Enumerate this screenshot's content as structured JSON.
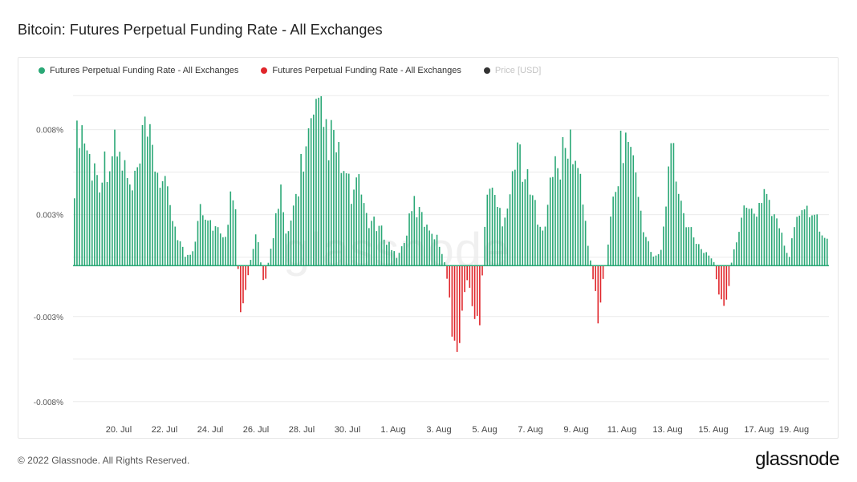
{
  "page": {
    "title": "Bitcoin: Futures Perpetual Funding Rate - All Exchanges",
    "copyright": "© 2022 Glassnode. All Rights Reserved.",
    "logo": "glassnode",
    "watermark": "glassnode"
  },
  "legend": [
    {
      "label": "Futures Perpetual Funding Rate - All Exchanges",
      "color": "#2aa876"
    },
    {
      "label": "Futures Perpetual Funding Rate - All Exchanges",
      "color": "#e0262b"
    },
    {
      "label": "Price [USD]",
      "color": "#333333",
      "muted": true
    }
  ],
  "chart_data": {
    "type": "bar",
    "title": "Bitcoin: Futures Perpetual Funding Rate - All Exchanges",
    "xlabel": "",
    "ylabel": "",
    "ylim": [
      -0.009,
      0.011
    ],
    "y_ticks": [
      {
        "value": 0.008,
        "label": "0.008%"
      },
      {
        "value": 0.003,
        "label": "0.003%"
      },
      {
        "value": -0.003,
        "label": "-0.003%"
      },
      {
        "value": -0.008,
        "label": "-0.008%"
      }
    ],
    "x_ticks": [
      "20. Jul",
      "22. Jul",
      "24. Jul",
      "26. Jul",
      "28. Jul",
      "30. Jul",
      "1. Aug",
      "3. Aug",
      "5. Aug",
      "7. Aug",
      "9. Aug",
      "11. Aug",
      "13. Aug",
      "15. Aug",
      "17. Aug",
      "19. Aug"
    ],
    "x_range": [
      "18. Jul",
      "19. Aug"
    ],
    "positive_color": "#2aa876",
    "negative_color": "#e0262b",
    "grid": true,
    "legend_position": "top-left",
    "anchors": [
      [
        0.0,
        0.0055
      ],
      [
        0.15,
        0.0095
      ],
      [
        0.35,
        0.0085
      ],
      [
        0.6,
        0.0065
      ],
      [
        0.9,
        0.0058
      ],
      [
        1.2,
        0.0068
      ],
      [
        1.5,
        0.0075
      ],
      [
        1.8,
        0.0065
      ],
      [
        2.1,
        0.0045
      ],
      [
        2.4,
        0.0065
      ],
      [
        2.6,
        0.0085
      ],
      [
        2.9,
        0.007
      ],
      [
        3.2,
        0.0055
      ],
      [
        3.5,
        0.004
      ],
      [
        3.8,
        0.002
      ],
      [
        4.1,
        0.0005
      ],
      [
        4.4,
        0.001
      ],
      [
        4.6,
        0.0045
      ],
      [
        4.9,
        0.003
      ],
      [
        5.2,
        0.0025
      ],
      [
        5.5,
        0.0015
      ],
      [
        5.9,
        0.006
      ],
      [
        6.0,
        0.0005
      ],
      [
        6.1,
        -0.003
      ],
      [
        6.3,
        -0.0015
      ],
      [
        6.5,
        0.0005
      ],
      [
        6.7,
        0.002
      ],
      [
        7.0,
        -0.0015
      ],
      [
        7.2,
        0.001
      ],
      [
        7.4,
        0.003
      ],
      [
        7.6,
        0.0045
      ],
      [
        7.8,
        0.0015
      ],
      [
        8.1,
        0.004
      ],
      [
        8.4,
        0.007
      ],
      [
        8.7,
        0.0085
      ],
      [
        9.0,
        0.0095
      ],
      [
        9.3,
        0.0085
      ],
      [
        9.6,
        0.0075
      ],
      [
        9.9,
        0.006
      ],
      [
        10.2,
        0.0045
      ],
      [
        10.5,
        0.005
      ],
      [
        10.8,
        0.003
      ],
      [
        11.1,
        0.0025
      ],
      [
        11.4,
        0.002
      ],
      [
        11.7,
        0.001
      ],
      [
        11.9,
        0.0005
      ],
      [
        12.2,
        0.002
      ],
      [
        12.5,
        0.004
      ],
      [
        12.8,
        0.003
      ],
      [
        13.1,
        0.0025
      ],
      [
        13.4,
        0.0015
      ],
      [
        13.6,
        0.0005
      ],
      [
        13.8,
        -0.002
      ],
      [
        13.9,
        -0.004
      ],
      [
        14.05,
        -0.0075
      ],
      [
        14.2,
        -0.004
      ],
      [
        14.35,
        -0.0015
      ],
      [
        14.5,
        -0.001
      ],
      [
        14.7,
        -0.003
      ],
      [
        14.9,
        -0.0045
      ],
      [
        15.05,
        0.001
      ],
      [
        15.2,
        0.0055
      ],
      [
        15.5,
        0.004
      ],
      [
        15.8,
        0.003
      ],
      [
        16.1,
        0.006
      ],
      [
        16.4,
        0.0075
      ],
      [
        16.7,
        0.005
      ],
      [
        17.0,
        0.0035
      ],
      [
        17.3,
        0.0025
      ],
      [
        17.6,
        0.006
      ],
      [
        18.0,
        0.007
      ],
      [
        18.3,
        0.008
      ],
      [
        18.6,
        0.0055
      ],
      [
        18.9,
        0.0015
      ],
      [
        19.1,
        -0.001
      ],
      [
        19.3,
        -0.0035
      ],
      [
        19.45,
        -0.001
      ],
      [
        19.6,
        0.0005
      ],
      [
        19.8,
        0.004
      ],
      [
        20.1,
        0.0075
      ],
      [
        20.4,
        0.0085
      ],
      [
        20.7,
        0.005
      ],
      [
        21.0,
        0.002
      ],
      [
        21.3,
        0.0005
      ],
      [
        21.6,
        0.001
      ],
      [
        21.8,
        0.0045
      ],
      [
        22.0,
        0.0085
      ],
      [
        22.2,
        0.0045
      ],
      [
        22.5,
        0.003
      ],
      [
        22.8,
        0.002
      ],
      [
        23.1,
        0.001
      ],
      [
        23.5,
        0.0005
      ],
      [
        23.7,
        -0.0015
      ],
      [
        23.9,
        -0.003
      ],
      [
        24.05,
        -0.002
      ],
      [
        24.2,
        0.0005
      ],
      [
        24.5,
        0.003
      ],
      [
        24.8,
        0.0035
      ],
      [
        25.1,
        0.0035
      ],
      [
        25.4,
        0.005
      ],
      [
        25.7,
        0.0035
      ],
      [
        26.0,
        0.002
      ],
      [
        26.3,
        0.0005
      ],
      [
        26.6,
        0.0035
      ],
      [
        26.9,
        0.004
      ],
      [
        27.2,
        0.0035
      ],
      [
        27.5,
        0.0025
      ],
      [
        27.7,
        0.0015
      ]
    ]
  }
}
